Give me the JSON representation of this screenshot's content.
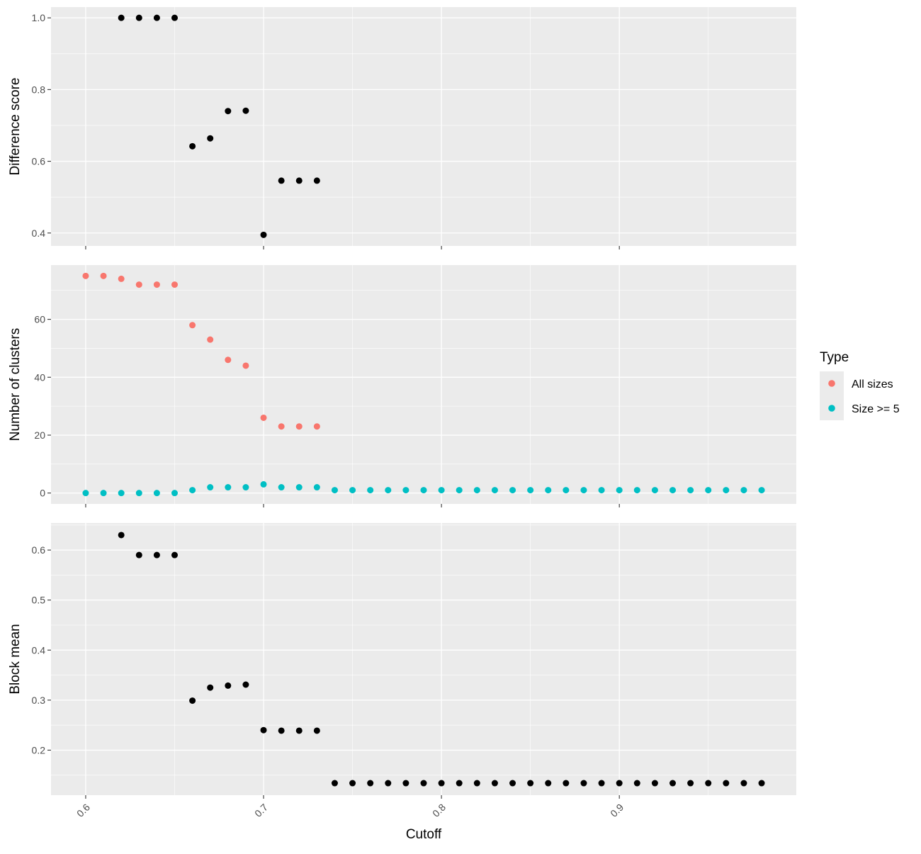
{
  "chart_data": [
    {
      "type": "scatter",
      "panel": "top",
      "ylabel": "Difference score",
      "xlabel": "",
      "yticks": [
        "0.4",
        "0.6",
        "0.8",
        "1.0"
      ],
      "ylim": [
        0.364,
        1.03
      ],
      "xlim": [
        0.5805,
        0.9995
      ],
      "grid": true,
      "series": [
        {
          "color": "#000000",
          "points": [
            [
              0.62,
              1.0
            ],
            [
              0.63,
              1.0
            ],
            [
              0.64,
              1.0
            ],
            [
              0.65,
              1.0
            ],
            [
              0.66,
              0.642
            ],
            [
              0.67,
              0.664
            ],
            [
              0.68,
              0.74
            ],
            [
              0.69,
              0.741
            ],
            [
              0.7,
              0.395
            ],
            [
              0.71,
              0.546
            ],
            [
              0.72,
              0.546
            ],
            [
              0.73,
              0.546
            ]
          ]
        }
      ]
    },
    {
      "type": "scatter",
      "panel": "middle",
      "ylabel": "Number of clusters",
      "xlabel": "",
      "yticks": [
        "0",
        "20",
        "40",
        "60"
      ],
      "ylim": [
        -3.75,
        78.75
      ],
      "xlim": [
        0.5805,
        0.9995
      ],
      "grid": true,
      "series": [
        {
          "name": "All sizes",
          "color": "#F8766D",
          "points": [
            [
              0.6,
              75
            ],
            [
              0.61,
              75
            ],
            [
              0.62,
              74
            ],
            [
              0.63,
              72
            ],
            [
              0.64,
              72
            ],
            [
              0.65,
              72
            ],
            [
              0.66,
              58
            ],
            [
              0.67,
              53
            ],
            [
              0.68,
              46
            ],
            [
              0.69,
              44
            ],
            [
              0.7,
              26
            ],
            [
              0.71,
              23
            ],
            [
              0.72,
              23
            ],
            [
              0.73,
              23
            ]
          ]
        },
        {
          "name": "Size >= 5",
          "color": "#00BFC4",
          "points": [
            [
              0.6,
              0
            ],
            [
              0.61,
              0
            ],
            [
              0.62,
              0
            ],
            [
              0.63,
              0
            ],
            [
              0.64,
              0
            ],
            [
              0.65,
              0
            ],
            [
              0.66,
              1
            ],
            [
              0.67,
              2
            ],
            [
              0.68,
              2
            ],
            [
              0.69,
              2
            ],
            [
              0.7,
              3
            ],
            [
              0.71,
              2
            ],
            [
              0.72,
              2
            ],
            [
              0.73,
              2
            ],
            [
              0.74,
              1
            ],
            [
              0.75,
              1
            ],
            [
              0.76,
              1
            ],
            [
              0.77,
              1
            ],
            [
              0.78,
              1
            ],
            [
              0.79,
              1
            ],
            [
              0.8,
              1
            ],
            [
              0.81,
              1
            ],
            [
              0.82,
              1
            ],
            [
              0.83,
              1
            ],
            [
              0.84,
              1
            ],
            [
              0.85,
              1
            ],
            [
              0.86,
              1
            ],
            [
              0.87,
              1
            ],
            [
              0.88,
              1
            ],
            [
              0.89,
              1
            ],
            [
              0.9,
              1
            ],
            [
              0.91,
              1
            ],
            [
              0.92,
              1
            ],
            [
              0.93,
              1
            ],
            [
              0.94,
              1
            ],
            [
              0.95,
              1
            ],
            [
              0.96,
              1
            ],
            [
              0.97,
              1
            ],
            [
              0.98,
              1
            ]
          ]
        }
      ]
    },
    {
      "type": "scatter",
      "panel": "bottom",
      "ylabel": "Block mean",
      "xlabel": "Cutoff",
      "yticks": [
        "0.2",
        "0.3",
        "0.4",
        "0.5",
        "0.6"
      ],
      "xticks": [
        "0.6",
        "0.7",
        "0.8",
        "0.9"
      ],
      "ylim": [
        0.11,
        0.654
      ],
      "xlim": [
        0.5805,
        0.9995
      ],
      "grid": true,
      "series": [
        {
          "color": "#000000",
          "points": [
            [
              0.62,
              0.63
            ],
            [
              0.63,
              0.59
            ],
            [
              0.64,
              0.59
            ],
            [
              0.65,
              0.59
            ],
            [
              0.66,
              0.299
            ],
            [
              0.67,
              0.325
            ],
            [
              0.68,
              0.329
            ],
            [
              0.69,
              0.331
            ],
            [
              0.7,
              0.24
            ],
            [
              0.71,
              0.239
            ],
            [
              0.72,
              0.239
            ],
            [
              0.73,
              0.239
            ],
            [
              0.74,
              0.134
            ],
            [
              0.75,
              0.134
            ],
            [
              0.76,
              0.134
            ],
            [
              0.77,
              0.134
            ],
            [
              0.78,
              0.134
            ],
            [
              0.79,
              0.134
            ],
            [
              0.8,
              0.134
            ],
            [
              0.81,
              0.134
            ],
            [
              0.82,
              0.134
            ],
            [
              0.83,
              0.134
            ],
            [
              0.84,
              0.134
            ],
            [
              0.85,
              0.134
            ],
            [
              0.86,
              0.134
            ],
            [
              0.87,
              0.134
            ],
            [
              0.88,
              0.134
            ],
            [
              0.89,
              0.134
            ],
            [
              0.9,
              0.134
            ],
            [
              0.91,
              0.134
            ],
            [
              0.92,
              0.134
            ],
            [
              0.93,
              0.134
            ],
            [
              0.94,
              0.134
            ],
            [
              0.95,
              0.134
            ],
            [
              0.96,
              0.134
            ],
            [
              0.97,
              0.134
            ],
            [
              0.98,
              0.134
            ]
          ]
        }
      ]
    }
  ],
  "legend": {
    "title": "Type",
    "items": [
      {
        "label": "All sizes",
        "color": "#F8766D"
      },
      {
        "label": "Size >= 5",
        "color": "#00BFC4"
      }
    ]
  }
}
